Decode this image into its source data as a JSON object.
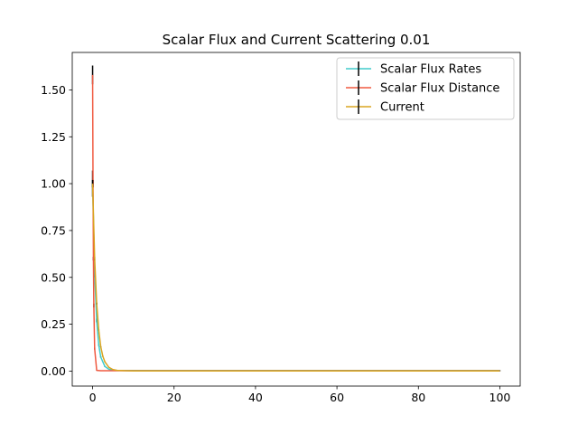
{
  "chart_data": {
    "type": "line",
    "title": "Scalar Flux and Current Scattering 0.01",
    "xlabel": "",
    "ylabel": "",
    "xlim": [
      -5,
      105
    ],
    "ylim": [
      -0.08,
      1.7
    ],
    "xticks": [
      0,
      20,
      40,
      60,
      80,
      100
    ],
    "xtick_labels": [
      "0",
      "20",
      "40",
      "60",
      "80",
      "100"
    ],
    "yticks": [
      0.0,
      0.25,
      0.5,
      0.75,
      1.0,
      1.25,
      1.5
    ],
    "ytick_labels": [
      "0.00",
      "0.25",
      "0.50",
      "0.75",
      "1.00",
      "1.25",
      "1.50"
    ],
    "grid": false,
    "legend_position": "top-right",
    "series": [
      {
        "name": "Scalar Flux Rates",
        "color": "#40cccc",
        "x": [
          0,
          0.5,
          1,
          1.5,
          2,
          3,
          4,
          5,
          6,
          8,
          10,
          20,
          40,
          60,
          80,
          100
        ],
        "y": [
          1.0,
          0.52,
          0.27,
          0.14,
          0.075,
          0.025,
          0.01,
          0.005,
          0.004,
          0.003,
          0.003,
          0.003,
          0.003,
          0.003,
          0.003,
          0.003
        ],
        "error": [
          0.07,
          0.02,
          0.01,
          0.005,
          0.003,
          0.002,
          0.001,
          0.001,
          0.001,
          0.001,
          0.001,
          0.001,
          0.001,
          0.001,
          0.001,
          0.001
        ]
      },
      {
        "name": "Scalar Flux Distance",
        "color": "#f05a41",
        "x": [
          0,
          0.1,
          0.2,
          0.3,
          0.5,
          1,
          2,
          5,
          10,
          20,
          40,
          60,
          80,
          100
        ],
        "y": [
          1.58,
          1.0,
          0.6,
          0.35,
          0.12,
          0.004,
          0.002,
          0.002,
          0.002,
          0.002,
          0.002,
          0.002,
          0.002,
          0.002
        ],
        "error": [
          0.05,
          0.02,
          0.01,
          0.01,
          0.005,
          0.001,
          0.001,
          0.001,
          0.001,
          0.001,
          0.001,
          0.001,
          0.001,
          0.001
        ]
      },
      {
        "name": "Current",
        "color": "#daa520",
        "x": [
          0,
          0.5,
          1,
          1.5,
          2,
          2.5,
          3,
          4,
          5,
          6,
          8,
          10,
          20,
          40,
          60,
          80,
          100
        ],
        "y": [
          1.0,
          0.6,
          0.36,
          0.22,
          0.13,
          0.08,
          0.05,
          0.02,
          0.008,
          0.004,
          0.002,
          0.001,
          0.001,
          0.001,
          0.001,
          0.001,
          0.001
        ],
        "error": [
          0.02,
          0.01,
          0.005,
          0.003,
          0.002,
          0.002,
          0.001,
          0.001,
          0.001,
          0.001,
          0.001,
          0.001,
          0.001,
          0.001,
          0.001,
          0.001,
          0.001
        ]
      }
    ]
  }
}
